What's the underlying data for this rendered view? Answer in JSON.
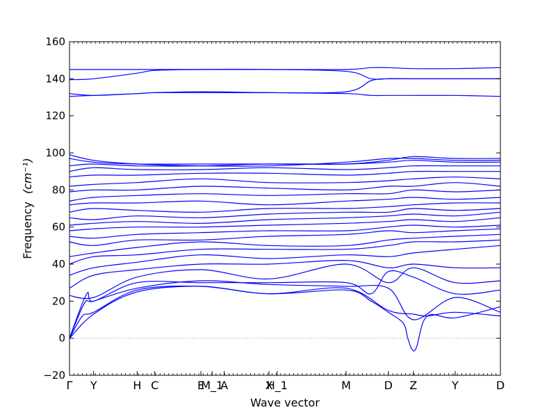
{
  "chart_data": {
    "type": "line",
    "title": "",
    "xlabel": "Wave vector",
    "ylabel": "Frequency",
    "ylabel_unit": "(cm⁻¹)",
    "ylim": [
      -20,
      160
    ],
    "xlim": [
      0,
      1
    ],
    "yticks": [
      "−20",
      "0",
      "20",
      "40",
      "60",
      "80",
      "100",
      "120",
      "140",
      "160"
    ],
    "ytick_values": [
      -20,
      0,
      20,
      40,
      60,
      80,
      100,
      120,
      140,
      160
    ],
    "q_points": [
      {
        "label": "Γ",
        "x": 0.0
      },
      {
        "label": "Y",
        "x": 0.056
      },
      {
        "label": "H",
        "x": 0.157
      },
      {
        "label": "C",
        "x": 0.198
      },
      {
        "label": "E",
        "x": 0.305
      },
      {
        "label": "M_1",
        "x": 0.331
      },
      {
        "label": "A",
        "x": 0.359
      },
      {
        "label": "X",
        "x": 0.463
      },
      {
        "label": "H_1",
        "x": 0.482
      },
      {
        "label": "M",
        "x": 0.642
      },
      {
        "label": "D",
        "x": 0.74
      },
      {
        "label": "Z",
        "x": 0.798
      },
      {
        "label": "Y",
        "x": 0.895
      },
      {
        "label": "D",
        "x": 1.0
      }
    ],
    "zero_line": true,
    "line_color": "#0000ff",
    "zero_line_color": "#888888",
    "series": [
      {
        "x": [
          0,
          0.056,
          0.157,
          0.305,
          0.463,
          0.642,
          0.74,
          0.798,
          0.83,
          0.895,
          1.0
        ],
        "y": [
          0,
          13,
          25,
          28,
          24,
          27,
          15,
          13,
          12,
          14,
          12
        ]
      },
      {
        "x": [
          0,
          0.03,
          0.056,
          0.157,
          0.305,
          0.463,
          0.642,
          0.7,
          0.74,
          0.775,
          0.785,
          0.795,
          0.805,
          0.83,
          0.895,
          1.0
        ],
        "y": [
          0,
          12,
          14,
          26,
          28,
          24,
          26,
          20,
          14,
          8,
          0,
          -6,
          -5,
          12,
          11,
          17
        ]
      },
      {
        "x": [
          0,
          0.035,
          0.056,
          0.157,
          0.305,
          0.463,
          0.642,
          0.74,
          0.798,
          0.895,
          1.0
        ],
        "y": [
          0,
          19,
          20,
          27,
          31,
          29,
          28,
          27,
          10,
          22,
          14
        ]
      },
      {
        "x": [
          0,
          0.04,
          0.056,
          0.157,
          0.305,
          0.463,
          0.642,
          0.7,
          0.74,
          0.798,
          0.895,
          1.0
        ],
        "y": [
          0,
          24,
          20,
          30,
          30,
          30,
          30,
          24,
          36,
          33,
          24,
          26
        ]
      },
      {
        "x": [
          0,
          0.056,
          0.157,
          0.305,
          0.463,
          0.642,
          0.74,
          0.798,
          0.895,
          1.0
        ],
        "y": [
          23,
          22,
          33,
          37,
          32,
          40,
          30,
          38,
          30,
          31
        ]
      },
      {
        "x": [
          0,
          0.056,
          0.157,
          0.305,
          0.463,
          0.642,
          0.74,
          0.798,
          0.895,
          1.0
        ],
        "y": [
          27,
          34,
          37,
          40,
          40,
          42,
          38,
          40,
          38,
          38
        ]
      },
      {
        "x": [
          0,
          0.056,
          0.157,
          0.305,
          0.463,
          0.642,
          0.74,
          0.798,
          0.895,
          1.0
        ],
        "y": [
          34,
          38,
          41,
          45,
          43,
          45,
          44,
          46,
          48,
          50
        ]
      },
      {
        "x": [
          0,
          0.056,
          0.157,
          0.305,
          0.463,
          0.642,
          0.74,
          0.798,
          0.895,
          1.0
        ],
        "y": [
          40,
          44,
          45,
          48,
          48,
          48,
          50,
          52,
          52,
          53
        ]
      },
      {
        "x": [
          0,
          0.056,
          0.157,
          0.305,
          0.463,
          0.642,
          0.74,
          0.798,
          0.895,
          1.0
        ],
        "y": [
          44,
          46,
          49,
          52,
          50,
          50,
          53,
          54,
          55,
          56
        ]
      },
      {
        "x": [
          0,
          0.056,
          0.157,
          0.305,
          0.463,
          0.642,
          0.74,
          0.798,
          0.895,
          1.0
        ],
        "y": [
          52,
          50,
          53,
          53,
          55,
          56,
          58,
          57,
          58,
          59
        ]
      },
      {
        "x": [
          0,
          0.056,
          0.157,
          0.305,
          0.463,
          0.642,
          0.74,
          0.798,
          0.895,
          1.0
        ],
        "y": [
          55,
          54,
          56,
          57,
          58,
          58,
          60,
          61,
          60,
          61
        ]
      },
      {
        "x": [
          0,
          0.056,
          0.157,
          0.305,
          0.463,
          0.642,
          0.74,
          0.798,
          0.895,
          1.0
        ],
        "y": [
          58,
          59,
          60,
          60,
          61,
          62,
          63,
          64,
          63,
          65
        ]
      },
      {
        "x": [
          0,
          0.056,
          0.157,
          0.305,
          0.463,
          0.642,
          0.74,
          0.798,
          0.895,
          1.0
        ],
        "y": [
          61,
          62,
          63,
          62,
          64,
          65,
          66,
          67,
          66,
          68
        ]
      },
      {
        "x": [
          0,
          0.056,
          0.157,
          0.305,
          0.463,
          0.642,
          0.74,
          0.798,
          0.895,
          1.0
        ],
        "y": [
          65,
          64,
          66,
          65,
          67,
          68,
          68,
          70,
          69,
          70
        ]
      },
      {
        "x": [
          0,
          0.056,
          0.157,
          0.305,
          0.463,
          0.642,
          0.74,
          0.798,
          0.895,
          1.0
        ],
        "y": [
          68,
          70,
          69,
          68,
          70,
          70,
          71,
          72,
          73,
          73
        ]
      },
      {
        "x": [
          0,
          0.056,
          0.157,
          0.305,
          0.463,
          0.642,
          0.74,
          0.798,
          0.895,
          1.0
        ],
        "y": [
          72,
          73,
          73,
          74,
          72,
          74,
          75,
          76,
          75,
          76
        ]
      },
      {
        "x": [
          0,
          0.056,
          0.157,
          0.305,
          0.463,
          0.642,
          0.74,
          0.798,
          0.895,
          1.0
        ],
        "y": [
          74,
          76,
          77,
          78,
          77,
          78,
          78,
          80,
          79,
          80
        ]
      },
      {
        "x": [
          0,
          0.056,
          0.157,
          0.305,
          0.463,
          0.642,
          0.74,
          0.798,
          0.895,
          1.0
        ],
        "y": [
          79,
          80,
          80,
          82,
          81,
          80,
          82,
          82,
          84,
          82
        ]
      },
      {
        "x": [
          0,
          0.056,
          0.157,
          0.305,
          0.463,
          0.642,
          0.74,
          0.798,
          0.895,
          1.0
        ],
        "y": [
          82,
          83,
          84,
          86,
          84,
          84,
          85,
          86,
          87,
          86
        ]
      },
      {
        "x": [
          0,
          0.056,
          0.157,
          0.305,
          0.463,
          0.642,
          0.74,
          0.798,
          0.895,
          1.0
        ],
        "y": [
          87,
          88,
          88,
          89,
          89,
          88,
          89,
          90,
          90,
          90
        ]
      },
      {
        "x": [
          0,
          0.056,
          0.157,
          0.305,
          0.463,
          0.642,
          0.74,
          0.798,
          0.895,
          1.0
        ],
        "y": [
          90,
          92,
          91,
          91,
          92,
          91,
          92,
          93,
          93,
          93
        ]
      },
      {
        "x": [
          0,
          0.056,
          0.157,
          0.305,
          0.463,
          0.642,
          0.74,
          0.798,
          0.895,
          1.0
        ],
        "y": [
          93,
          94,
          93,
          93,
          94,
          94,
          95,
          96,
          95,
          95
        ]
      },
      {
        "x": [
          0,
          0.056,
          0.157,
          0.305,
          0.463,
          0.642,
          0.74,
          0.798,
          0.895,
          1.0
        ],
        "y": [
          97,
          95,
          94,
          94,
          94,
          94,
          96,
          98,
          97,
          97
        ]
      },
      {
        "x": [
          0,
          0.056,
          0.157,
          0.305,
          0.463,
          0.642,
          0.74,
          0.798,
          0.895,
          1.0
        ],
        "y": [
          99,
          96,
          94,
          93,
          93,
          95,
          97,
          97,
          96,
          96
        ]
      },
      {
        "x": [
          0,
          0.056,
          0.157,
          0.198,
          0.305,
          0.463,
          0.642,
          0.7,
          0.74,
          0.798,
          0.895,
          1.0
        ],
        "y": [
          130.5,
          131,
          132,
          132.5,
          132.5,
          132.5,
          133,
          139,
          140,
          140,
          140,
          140
        ]
      },
      {
        "x": [
          0,
          0.056,
          0.157,
          0.198,
          0.305,
          0.463,
          0.642,
          0.7,
          0.74,
          0.798,
          0.895,
          1.0
        ],
        "y": [
          132,
          131,
          132,
          132.5,
          133,
          132.5,
          132,
          131,
          131,
          131,
          131,
          130.5
        ]
      },
      {
        "x": [
          0,
          0.056,
          0.157,
          0.198,
          0.305,
          0.463,
          0.642,
          0.7,
          0.74,
          0.798,
          0.895,
          1.0
        ],
        "y": [
          139.5,
          140,
          143,
          144.5,
          145,
          145,
          144,
          140,
          140,
          140,
          140,
          140
        ]
      },
      {
        "x": [
          0,
          0.056,
          0.157,
          0.198,
          0.305,
          0.463,
          0.642,
          0.7,
          0.74,
          0.798,
          0.895,
          1.0
        ],
        "y": [
          145,
          145,
          145,
          145,
          145,
          145,
          145,
          146,
          146,
          145.5,
          145.5,
          146
        ]
      }
    ]
  }
}
